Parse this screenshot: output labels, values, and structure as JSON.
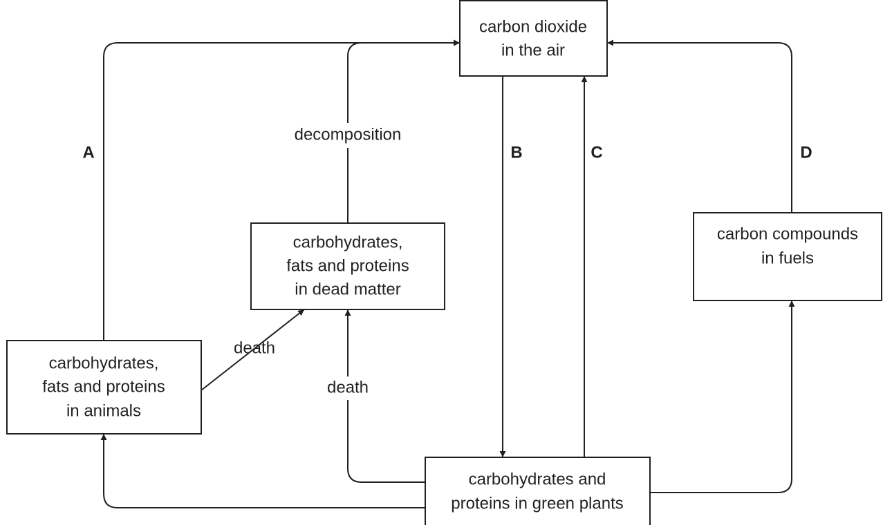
{
  "nodes": [
    {
      "lines": [
        "carbon dioxide",
        "in the air"
      ]
    },
    {
      "lines": [
        "carbohydrates,",
        "fats and proteins",
        "in dead matter"
      ]
    },
    {
      "lines": [
        "carbohydrates,",
        "fats and proteins",
        "in animals"
      ]
    },
    {
      "lines": [
        "carbon compounds",
        "in fuels"
      ]
    },
    {
      "lines": [
        "carbohydrates and",
        "proteins in green plants"
      ]
    }
  ],
  "labels": {
    "a": "A",
    "b": "B",
    "c": "C",
    "d": "D",
    "decomposition": "decomposition",
    "death_animals": "death",
    "death_plants": "death"
  }
}
